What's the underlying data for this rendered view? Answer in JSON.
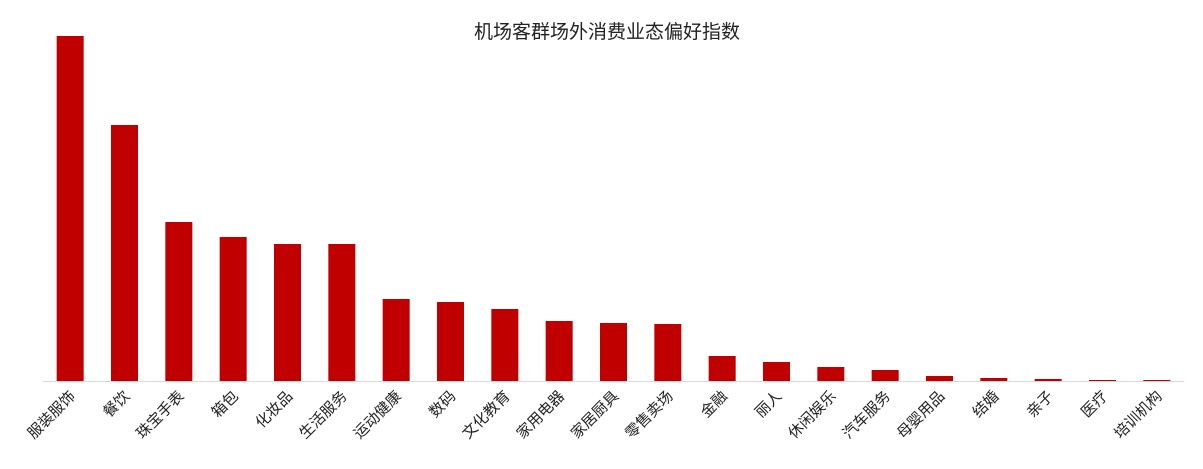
{
  "chart_data": {
    "type": "bar",
    "title": "机场客群场外消费业态偏好指数",
    "categories": [
      "服装服饰",
      "餐饮",
      "珠宝手表",
      "箱包",
      "化妆品",
      "生活服务",
      "运动健康",
      "数码",
      "文化教育",
      "家用电器",
      "家居厨具",
      "零售卖场",
      "金融",
      "丽人",
      "休闲娱乐",
      "汽车服务",
      "母婴用品",
      "结婚",
      "亲子",
      "医疗",
      "培训机构"
    ],
    "values": [
      345,
      256,
      159,
      144,
      137,
      137,
      82,
      79,
      72,
      60,
      58,
      57,
      25,
      19,
      14,
      11,
      5,
      3,
      2,
      1,
      1
    ],
    "color": "#c00000",
    "ylim": [
      0,
      345
    ]
  }
}
